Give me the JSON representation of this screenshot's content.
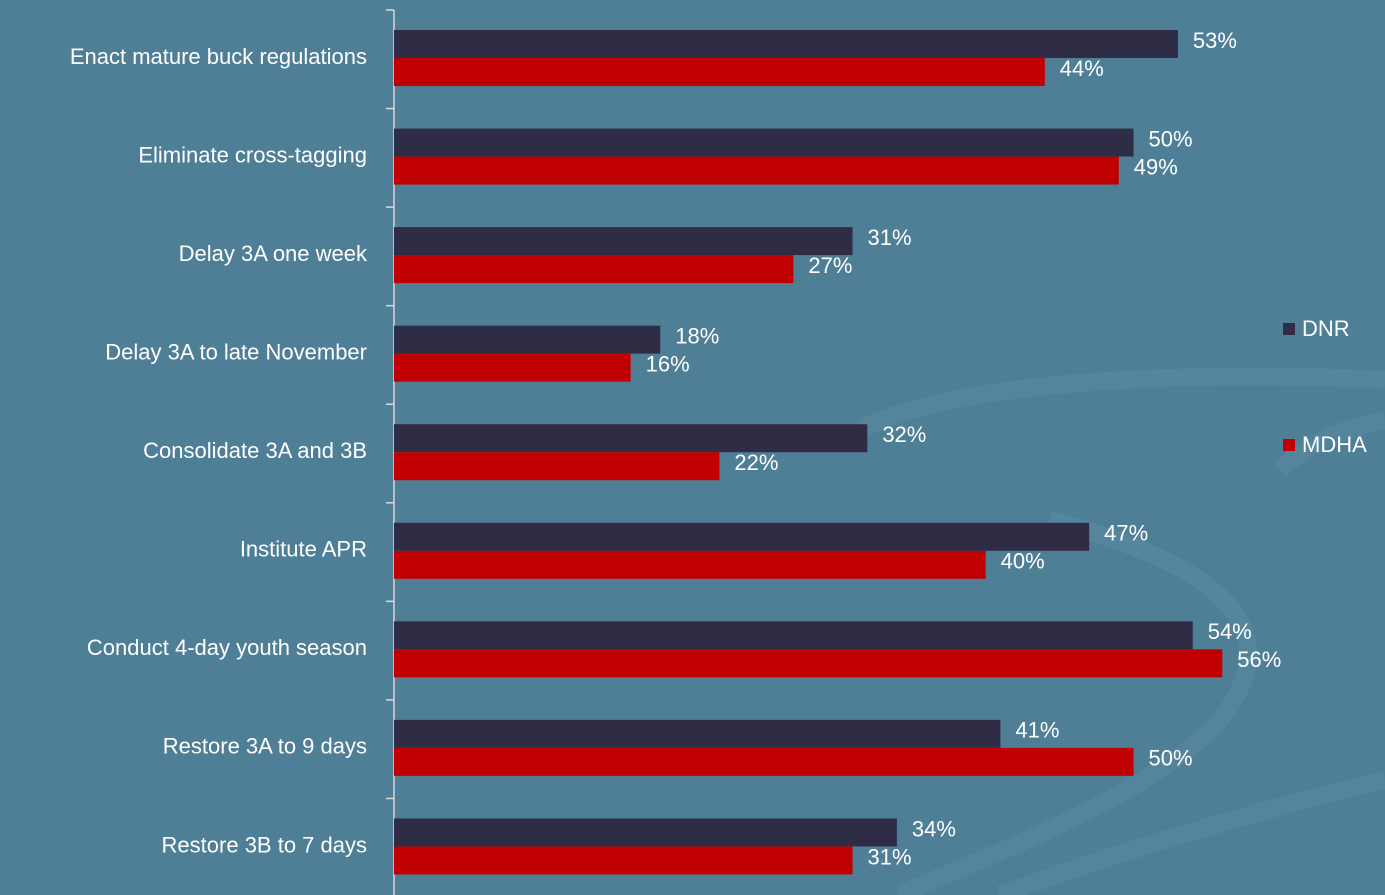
{
  "chart_data": {
    "type": "barh",
    "categories": [
      "Enact mature buck regulations",
      "Eliminate cross-tagging",
      "Delay 3A one week",
      "Delay 3A to late November",
      "Consolidate 3A and 3B",
      "Institute APR",
      "Conduct 4-day youth season",
      "Restore 3A to 9 days",
      "Restore 3B to 7 days"
    ],
    "series": [
      {
        "name": "DNR",
        "color": "#2e2d45",
        "values": [
          53,
          50,
          31,
          18,
          32,
          47,
          54,
          41,
          34
        ],
        "value_labels": [
          "53%",
          "50%",
          "31%",
          "18%",
          "32%",
          "47%",
          "54%",
          "41%",
          "34%"
        ]
      },
      {
        "name": "MDHA",
        "color": "#c00000",
        "values": [
          44,
          49,
          27,
          16,
          22,
          40,
          56,
          50,
          31
        ],
        "value_labels": [
          "44%",
          "49%",
          "27%",
          "16%",
          "22%",
          "40%",
          "56%",
          "50%",
          "31%"
        ]
      }
    ],
    "xlim": [
      0,
      67
    ],
    "legend": "right"
  }
}
